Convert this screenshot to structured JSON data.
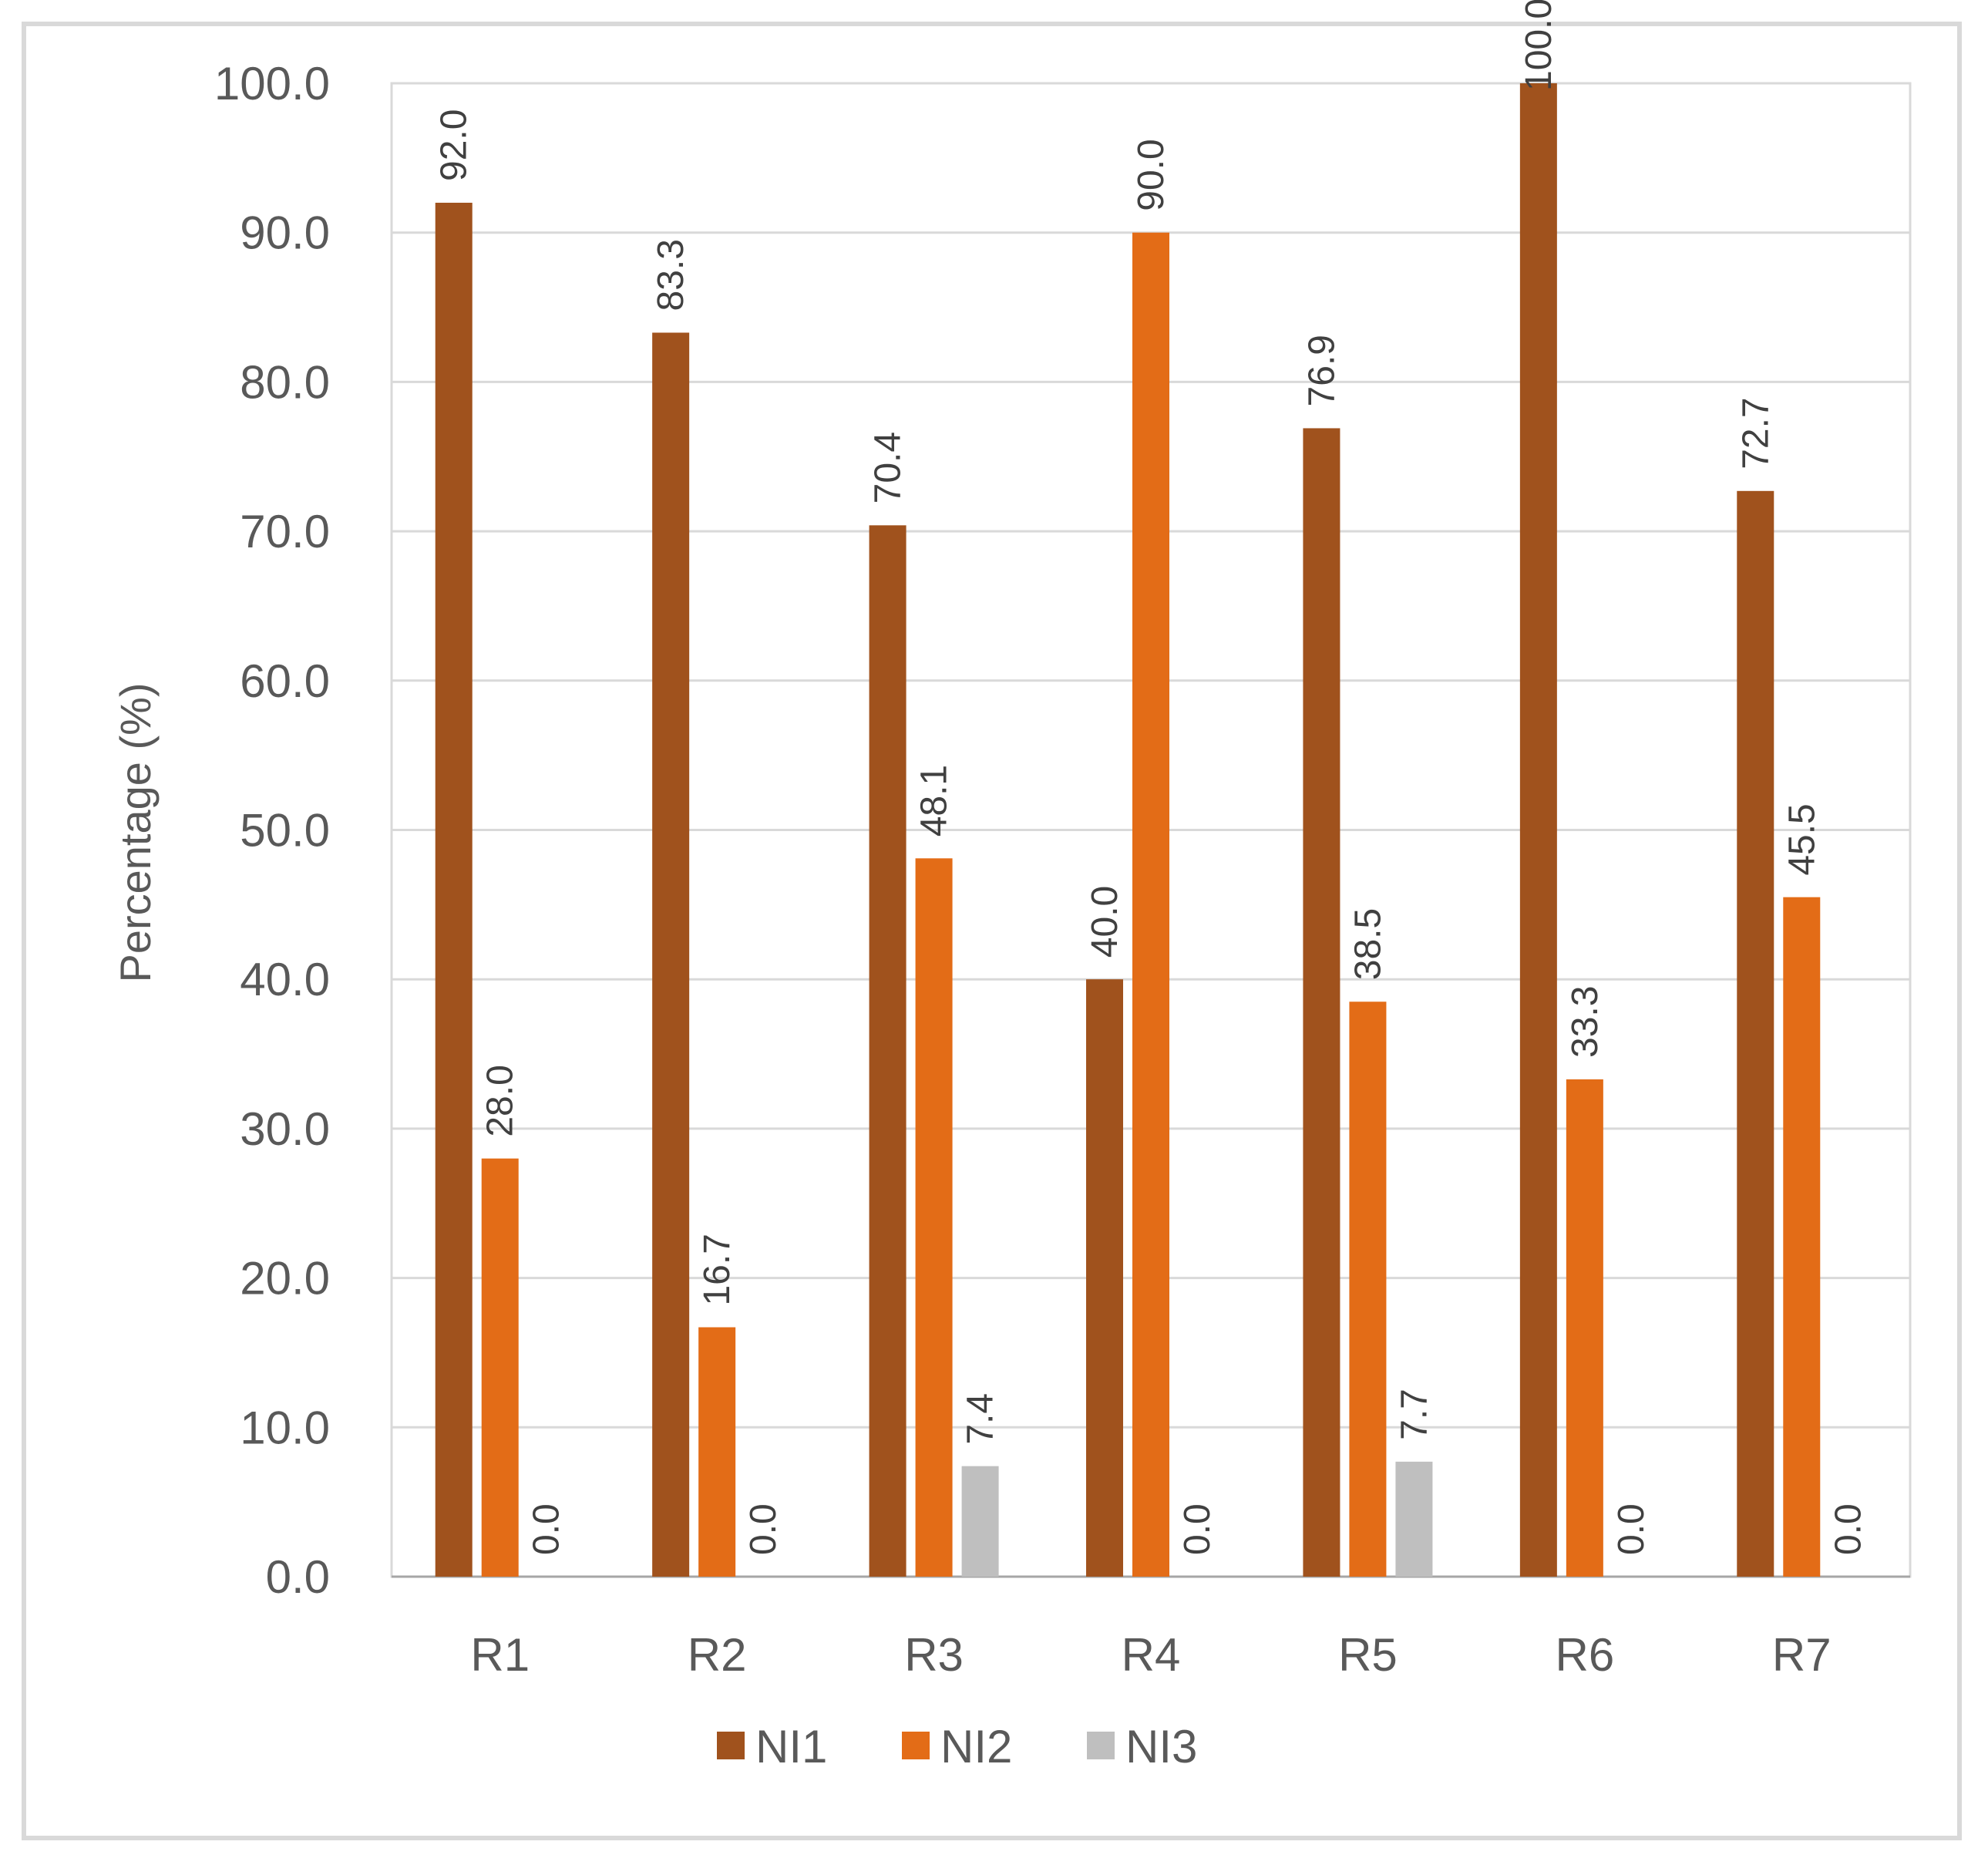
{
  "chart_data": {
    "type": "bar",
    "categories": [
      "R1",
      "R2",
      "R3",
      "R4",
      "R5",
      "R6",
      "R7"
    ],
    "series": [
      {
        "name": "NI1",
        "color": "#a0521d",
        "values": [
          92.0,
          83.3,
          70.4,
          40.0,
          76.9,
          100.0,
          72.7
        ],
        "labels": [
          "92.0",
          "83.3",
          "70.4",
          "40.0",
          "76.9",
          "100.0",
          "72.7"
        ]
      },
      {
        "name": "NI2",
        "color": "#e36c17",
        "values": [
          28.0,
          16.7,
          48.1,
          90.0,
          38.5,
          33.3,
          45.5
        ],
        "labels": [
          "28.0",
          "16.7",
          "48.1",
          "90.0",
          "38.5",
          "33.3",
          "45.5"
        ]
      },
      {
        "name": "NI3",
        "color": "#bfbfbf",
        "values": [
          0.0,
          0.0,
          7.4,
          0.0,
          7.7,
          0.0,
          0.0
        ],
        "labels": [
          "0.0",
          "0.0",
          "7.4",
          "0.0",
          "7.7",
          "0.0",
          "0.0"
        ]
      }
    ],
    "title": "",
    "xlabel": "",
    "ylabel": "Percentage (%)",
    "ylim": [
      0,
      100
    ],
    "yticks": [
      "0.0",
      "10.0",
      "20.0",
      "30.0",
      "40.0",
      "50.0",
      "60.0",
      "70.0",
      "80.0",
      "90.0",
      "100.0"
    ],
    "grid": true,
    "legend_position": "bottom",
    "gridline_color": "#d9d9d9",
    "axis_color": "#a6a6a6"
  }
}
